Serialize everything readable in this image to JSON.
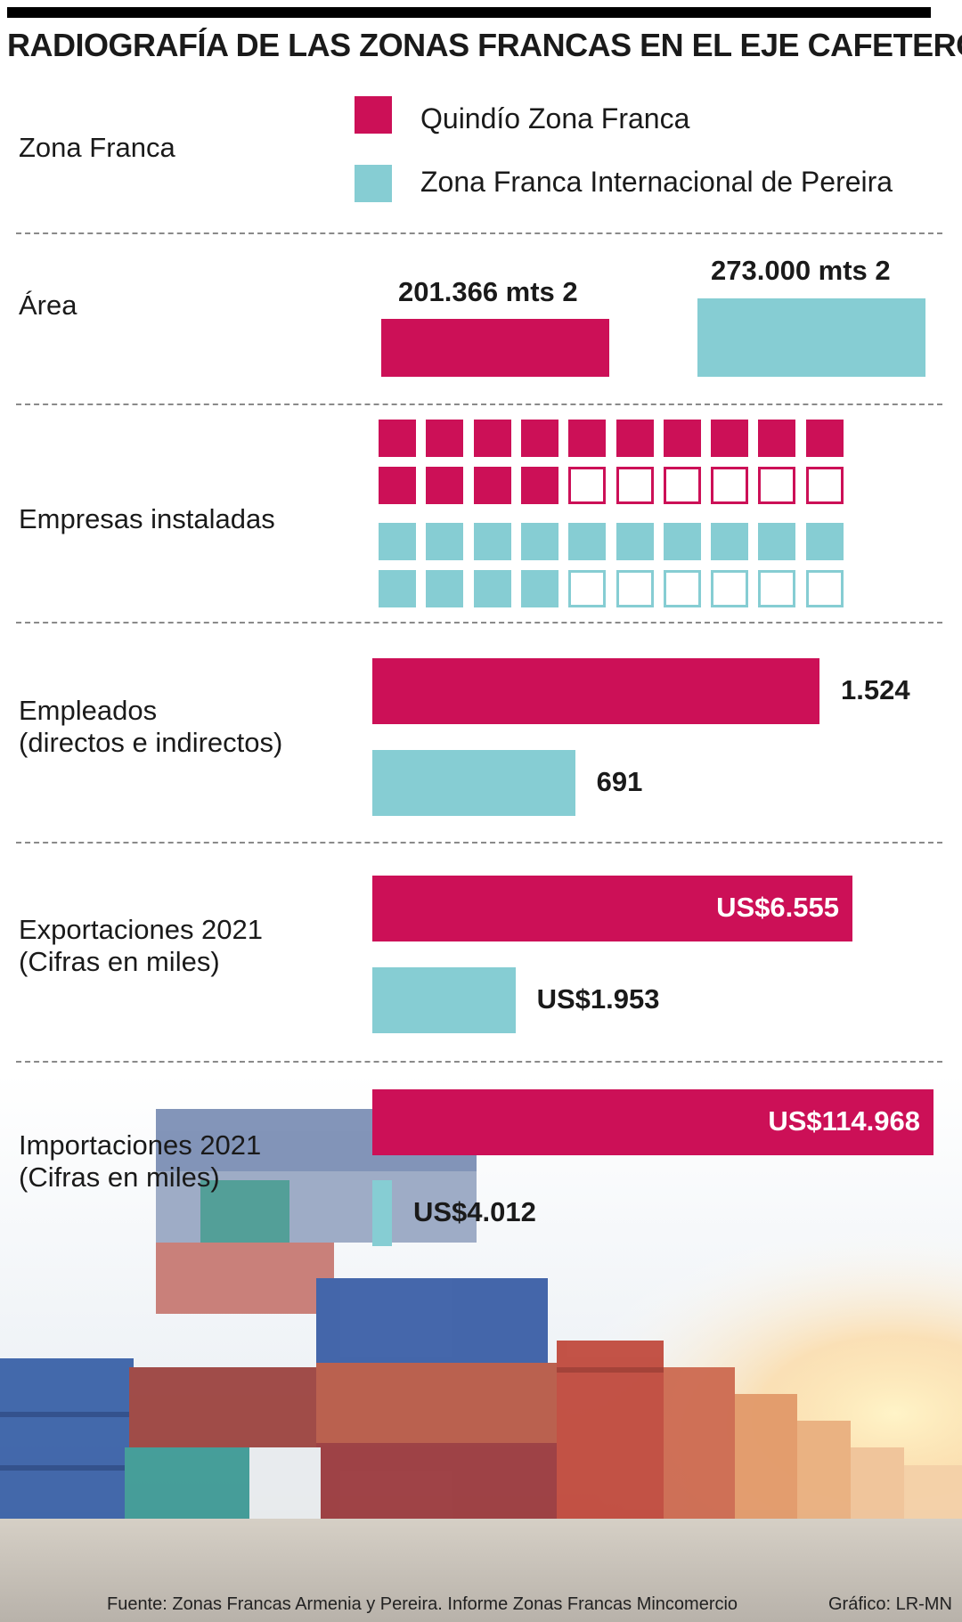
{
  "title": "RADIOGRAFÍA DE LAS ZONAS FRANCAS EN EL EJE CAFETERO",
  "colors": {
    "quindio": "#cc1057",
    "pereira": "#86cdd3"
  },
  "legend": {
    "row_label": "Zona Franca",
    "items": [
      "Quindío Zona Franca",
      "Zona Franca Internacional de Pereira"
    ]
  },
  "photo_icon": "shipping-containers-and-airplane-photo",
  "chart_data": [
    {
      "type": "bar",
      "label": "Área",
      "series": [
        {
          "name": "Quindío Zona Franca",
          "values": [
            201366
          ]
        },
        {
          "name": "Zona Franca Internacional de Pereira",
          "values": [
            273000
          ]
        }
      ],
      "value_labels": [
        "201.366 mts 2",
        "273.000 mts 2"
      ]
    },
    {
      "type": "table",
      "label": "Empresas instaladas",
      "series": [
        {
          "name": "Quindío Zona Franca",
          "filled": 14,
          "total": 20
        },
        {
          "name": "Zona Franca Internacional de Pereira",
          "filled": 14,
          "total": 20
        }
      ]
    },
    {
      "type": "bar",
      "label": "Empleados\n(directos e indirectos)",
      "series": [
        {
          "name": "Quindío Zona Franca",
          "values": [
            1524
          ]
        },
        {
          "name": "Zona Franca Internacional de Pereira",
          "values": [
            691
          ]
        }
      ],
      "value_labels": [
        "1.524",
        "691"
      ]
    },
    {
      "type": "bar",
      "label": "Exportaciones 2021\n(Cifras en miles)",
      "series": [
        {
          "name": "Quindío Zona Franca",
          "values": [
            6555
          ]
        },
        {
          "name": "Zona Franca Internacional de Pereira",
          "values": [
            1953
          ]
        }
      ],
      "value_labels": [
        "US$6.555",
        "US$1.953"
      ]
    },
    {
      "type": "bar",
      "label": "Importaciones 2021\n(Cifras en miles)",
      "series": [
        {
          "name": "Quindío Zona Franca",
          "values": [
            114968
          ]
        },
        {
          "name": "Zona Franca Internacional de Pereira",
          "values": [
            4012
          ]
        }
      ],
      "value_labels": [
        "US$114.968",
        "US$4.012"
      ]
    }
  ],
  "footer": {
    "source": "Fuente: Zonas Francas Armenia y Pereira. Informe Zonas Francas Mincomercio",
    "credit": "Gráfico: LR-MN"
  }
}
